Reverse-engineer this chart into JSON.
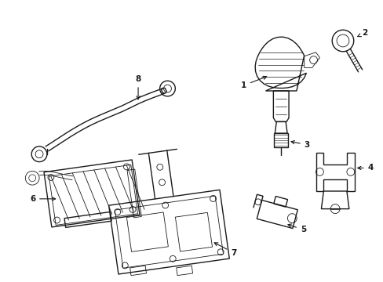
{
  "background_color": "#ffffff",
  "line_color": "#1a1a1a",
  "lw": 1.0,
  "tlw": 0.6,
  "figsize": [
    4.89,
    3.6
  ],
  "dpi": 100
}
